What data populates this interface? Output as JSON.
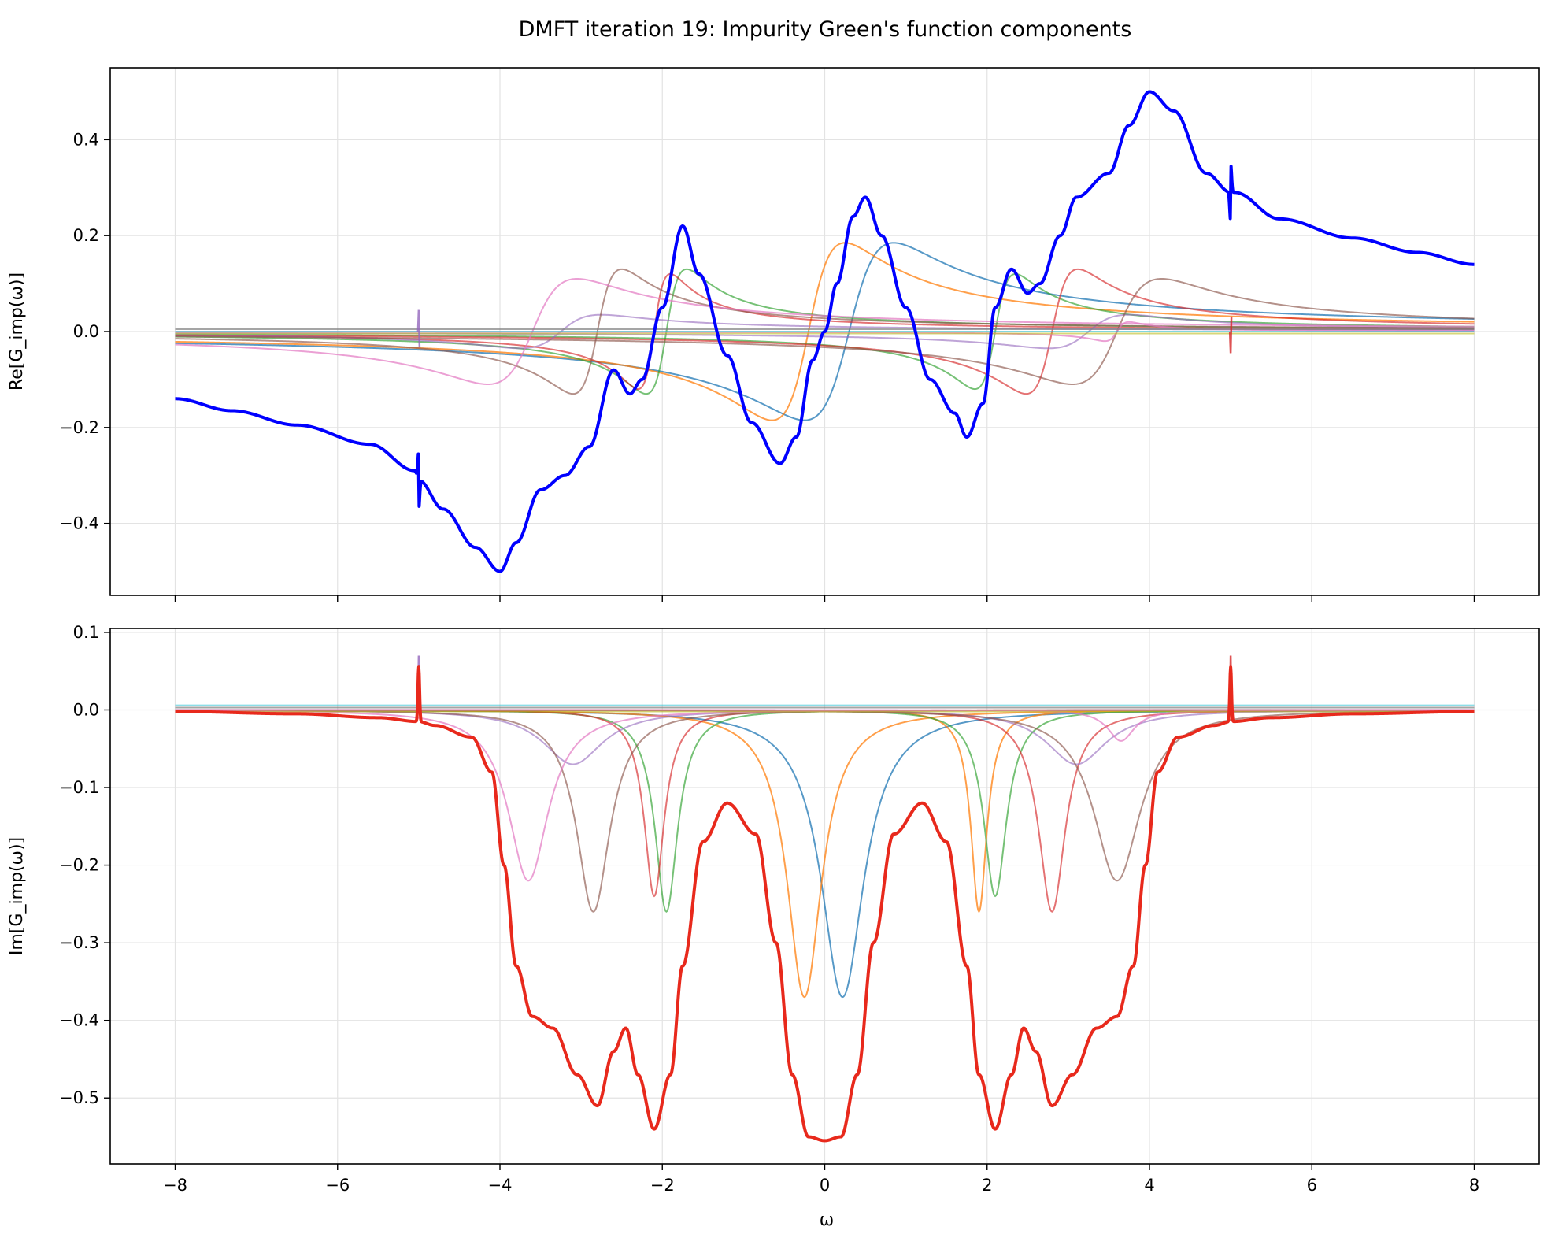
{
  "figure_title": "DMFT iteration 19: Impurity Green's function components",
  "x_label": "ω",
  "chart_data": [
    {
      "type": "line",
      "panel": "top",
      "title": "",
      "xlabel": "",
      "ylabel": "Re[G_imp(ω)]",
      "xlim": [
        -8.8,
        8.8
      ],
      "ylim": [
        -0.55,
        0.55
      ],
      "xticks": [
        -8,
        -6,
        -4,
        -2,
        0,
        2,
        4,
        6,
        8
      ],
      "xtick_labels": [],
      "yticks": [
        -0.4,
        -0.2,
        0.0,
        0.2,
        0.4
      ],
      "ytick_labels": [
        "−0.4",
        "−0.2",
        "0.0",
        "0.2",
        "0.4"
      ],
      "grid": true,
      "legend": "none",
      "components": [
        {
          "kind": "dispersive",
          "center": 0.3,
          "width": 0.55,
          "amp": 0.37,
          "color": "#1f77b4",
          "opacity": 0.75
        },
        {
          "kind": "dispersive",
          "center": -0.2,
          "width": 0.45,
          "amp": 0.37,
          "color": "#ff7f0e",
          "opacity": 0.75
        },
        {
          "kind": "dispersive",
          "center": -1.95,
          "width": 0.25,
          "amp": 0.26,
          "color": "#2ca02c",
          "opacity": 0.65
        },
        {
          "kind": "dispersive",
          "center": 2.1,
          "width": 0.25,
          "amp": 0.24,
          "color": "#2ca02c",
          "opacity": 0.65
        },
        {
          "kind": "dispersive",
          "center": -2.1,
          "width": 0.2,
          "amp": 0.24,
          "color": "#d62728",
          "opacity": 0.65
        },
        {
          "kind": "dispersive",
          "center": 2.8,
          "width": 0.32,
          "amp": 0.26,
          "color": "#d62728",
          "opacity": 0.65
        },
        {
          "kind": "dispersive",
          "center": -3.25,
          "width": 0.5,
          "amp": 0.07,
          "color": "#9467bd",
          "opacity": 0.6
        },
        {
          "kind": "dispersive",
          "center": 3.25,
          "width": 0.5,
          "amp": 0.07,
          "color": "#9467bd",
          "opacity": 0.6
        },
        {
          "kind": "dispersive",
          "center": -2.8,
          "width": 0.3,
          "amp": 0.26,
          "color": "#8c564b",
          "opacity": 0.65
        },
        {
          "kind": "dispersive",
          "center": 3.6,
          "width": 0.55,
          "amp": 0.22,
          "color": "#8c564b",
          "opacity": 0.65
        },
        {
          "kind": "dispersive",
          "center": -3.6,
          "width": 0.55,
          "amp": 0.22,
          "color": "#e377c2",
          "opacity": 0.7
        },
        {
          "kind": "dispersive",
          "center": 3.6,
          "width": 0.15,
          "amp": 0.04,
          "color": "#e377c2",
          "opacity": 0.7
        },
        {
          "kind": "flat",
          "value": 0.005,
          "color": "#7f7f7f",
          "opacity": 0.7
        },
        {
          "kind": "flat",
          "value": -0.004,
          "color": "#bcbd22",
          "opacity": 0.6
        },
        {
          "kind": "flat",
          "value": 0.0,
          "color": "#17becf",
          "opacity": 0.5
        }
      ],
      "total": {
        "color": "#0000ff",
        "width": 4,
        "min": -0.5,
        "min_at": -4.0,
        "max": 0.5,
        "max_at": 4.0,
        "spikes_at": [
          -5,
          5
        ]
      }
    },
    {
      "type": "line",
      "panel": "bottom",
      "title": "",
      "xlabel": "ω",
      "ylabel": "Im[G_imp(ω)]",
      "xlim": [
        -8.8,
        8.8
      ],
      "ylim": [
        -0.585,
        0.105
      ],
      "xticks": [
        -8,
        -6,
        -4,
        -2,
        0,
        2,
        4,
        6,
        8
      ],
      "xtick_labels": [
        "−8",
        "−6",
        "−4",
        "−2",
        "0",
        "2",
        "4",
        "6",
        "8"
      ],
      "yticks": [
        -0.5,
        -0.4,
        -0.3,
        -0.2,
        -0.1,
        0.0,
        0.1
      ],
      "ytick_labels": [
        "−0.5",
        "−0.4",
        "−0.3",
        "−0.2",
        "−0.1",
        "0.0",
        "0.1"
      ],
      "grid": true,
      "legend": "none",
      "components": [
        {
          "kind": "lorentz",
          "center": 0.22,
          "width": 0.32,
          "depth": -0.37,
          "color": "#1f77b4",
          "opacity": 0.75
        },
        {
          "kind": "lorentz",
          "center": -0.25,
          "width": 0.26,
          "depth": -0.37,
          "color": "#ff7f0e",
          "opacity": 0.75
        },
        {
          "kind": "lorentz",
          "center": 1.9,
          "width": 0.12,
          "depth": -0.26,
          "color": "#ff7f0e",
          "opacity": 0.75
        },
        {
          "kind": "lorentz",
          "center": -1.95,
          "width": 0.17,
          "depth": -0.26,
          "color": "#2ca02c",
          "opacity": 0.65
        },
        {
          "kind": "lorentz",
          "center": 2.1,
          "width": 0.17,
          "depth": -0.24,
          "color": "#2ca02c",
          "opacity": 0.65
        },
        {
          "kind": "lorentz",
          "center": -2.1,
          "width": 0.15,
          "depth": -0.24,
          "color": "#d62728",
          "opacity": 0.65
        },
        {
          "kind": "lorentz",
          "center": 2.8,
          "width": 0.2,
          "depth": -0.26,
          "color": "#d62728",
          "opacity": 0.65
        },
        {
          "kind": "lorentz",
          "center": -3.1,
          "width": 0.45,
          "depth": -0.07,
          "color": "#9467bd",
          "opacity": 0.6
        },
        {
          "kind": "lorentz",
          "center": 3.1,
          "width": 0.45,
          "depth": -0.07,
          "color": "#9467bd",
          "opacity": 0.6
        },
        {
          "kind": "lorentz",
          "center": -2.85,
          "width": 0.25,
          "depth": -0.26,
          "color": "#8c564b",
          "opacity": 0.65
        },
        {
          "kind": "lorentz",
          "center": 3.6,
          "width": 0.35,
          "depth": -0.22,
          "color": "#8c564b",
          "opacity": 0.65
        },
        {
          "kind": "lorentz",
          "center": -3.65,
          "width": 0.3,
          "depth": -0.22,
          "color": "#e377c2",
          "opacity": 0.7
        },
        {
          "kind": "lorentz",
          "center": 3.65,
          "width": 0.2,
          "depth": -0.04,
          "color": "#e377c2",
          "opacity": 0.7
        },
        {
          "kind": "flat",
          "value": 0.003,
          "color": "#7f7f7f",
          "opacity": 0.7
        },
        {
          "kind": "flat",
          "value": -0.002,
          "color": "#bcbd22",
          "opacity": 0.6
        },
        {
          "kind": "flat",
          "value": 0.006,
          "color": "#17becf",
          "opacity": 0.5
        }
      ],
      "total": {
        "color": "#e8291c",
        "width": 4,
        "min": -0.56,
        "min_at": 0.0,
        "plateau": -0.4,
        "local_max": -0.12,
        "local_max_at": [
          -1.2,
          1.2
        ],
        "spikes_at": [
          -5,
          5
        ]
      }
    }
  ]
}
